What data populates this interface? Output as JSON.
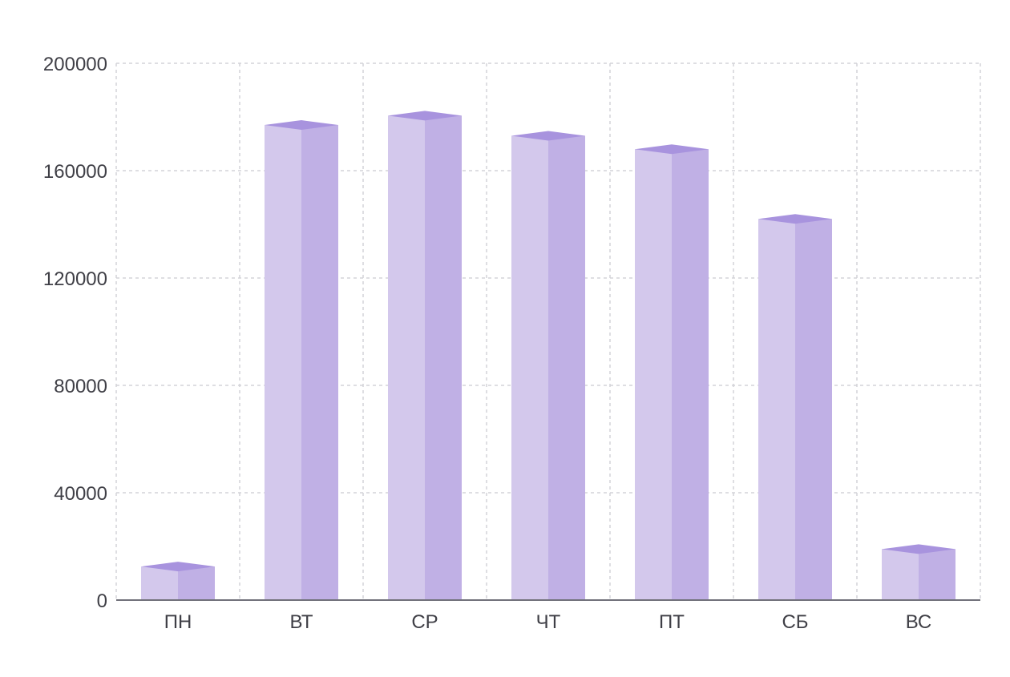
{
  "chart_data": {
    "type": "bar",
    "style": "3d-column",
    "categories": [
      "ПН",
      "ВТ",
      "СР",
      "ЧТ",
      "ПТ",
      "СБ",
      "ВС"
    ],
    "values": [
      12500,
      177000,
      180500,
      173000,
      168000,
      142000,
      19000
    ],
    "ylim": [
      0,
      200000
    ],
    "yticks": [
      0,
      40000,
      80000,
      120000,
      160000,
      200000
    ],
    "grid": true,
    "legend": "none",
    "colors": {
      "front_face": "#d3c8ec",
      "side_face": "#c0b0e5",
      "top_face": "#a893de",
      "axis": "#71717a",
      "grid": "#d4d4d8",
      "text": "#3f3f46"
    }
  }
}
